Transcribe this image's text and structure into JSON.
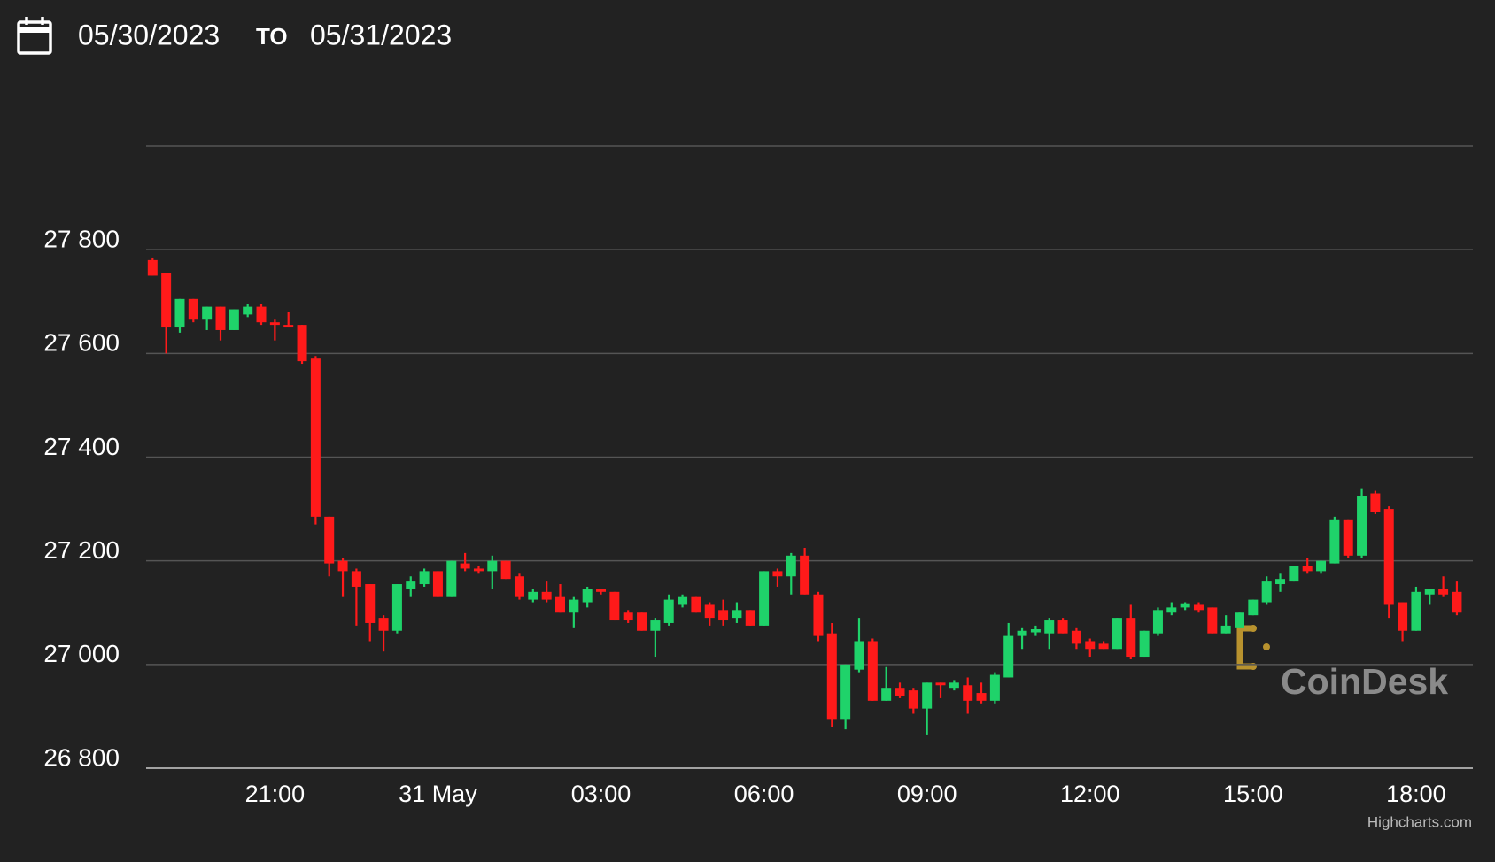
{
  "header": {
    "start_date": "05/30/2023",
    "separator": "TO",
    "end_date": "05/31/2023"
  },
  "chart_data": {
    "type": "candlestick",
    "up_color": "#1fd36a",
    "down_color": "#ff1a1a",
    "grid": true,
    "ylim": [
      26800,
      28000
    ],
    "yticks": [
      {
        "value": 26800,
        "label": "26 800"
      },
      {
        "value": 27000,
        "label": "27 000"
      },
      {
        "value": 27200,
        "label": "27 200"
      },
      {
        "value": 27400,
        "label": "27 400"
      },
      {
        "value": 27600,
        "label": "27 600"
      },
      {
        "value": 27800,
        "label": "27 800"
      }
    ],
    "categories": [
      null,
      null,
      null,
      null,
      null,
      null,
      null,
      null,
      null,
      "21:00",
      null,
      null,
      null,
      null,
      null,
      null,
      null,
      null,
      null,
      null,
      null,
      "31 May",
      null,
      null,
      null,
      null,
      null,
      null,
      null,
      null,
      null,
      null,
      null,
      "03:00",
      null,
      null,
      null,
      null,
      null,
      null,
      null,
      null,
      null,
      null,
      null,
      "06:00",
      null,
      null,
      null,
      null,
      null,
      null,
      null,
      null,
      null,
      null,
      null,
      "09:00",
      null,
      null,
      null,
      null,
      null,
      null,
      null,
      null,
      null,
      null,
      null,
      "12:00",
      null,
      null,
      null,
      null,
      null,
      null,
      null,
      null,
      null,
      null,
      null,
      "15:00",
      null,
      null,
      null,
      null,
      null,
      null,
      null,
      null,
      null,
      null,
      null,
      "18:00",
      null,
      null,
      null
    ],
    "open": [
      27780,
      27755,
      27650,
      27705,
      27665,
      27690,
      27645,
      27675,
      27690,
      27660,
      27655,
      27655,
      27590,
      27285,
      27200,
      27180,
      27155,
      27090,
      27065,
      27145,
      27155,
      27180,
      27130,
      27195,
      27185,
      27180,
      27200,
      27170,
      27125,
      27140,
      27130,
      27100,
      27120,
      27145,
      27140,
      27100,
      27100,
      27065,
      27080,
      27115,
      27130,
      27115,
      27105,
      27090,
      27105,
      27075,
      27180,
      27170,
      27210,
      27135,
      27060,
      26895,
      26990,
      27045,
      26930,
      26955,
      26950,
      26915,
      26965,
      26955,
      26960,
      26945,
      26930,
      26975,
      27055,
      27062,
      27060,
      27085,
      27065,
      27045,
      27040,
      27030,
      27090,
      27015,
      27060,
      27100,
      27110,
      27115,
      27110,
      27060,
      27070,
      27095,
      27120,
      27155,
      27160,
      27190,
      27180,
      27195,
      27280,
      27210,
      27330,
      27300,
      27120,
      27065,
      27135,
      27145,
      27140
    ],
    "high": [
      27785,
      27755,
      27705,
      27705,
      27690,
      27690,
      27685,
      27695,
      27695,
      27665,
      27680,
      27655,
      27595,
      27285,
      27205,
      27185,
      27155,
      27095,
      27155,
      27170,
      27185,
      27180,
      27200,
      27215,
      27190,
      27210,
      27200,
      27175,
      27145,
      27160,
      27155,
      27130,
      27150,
      27145,
      27140,
      27105,
      27100,
      27090,
      27135,
      27135,
      27130,
      27120,
      27125,
      27120,
      27105,
      27180,
      27185,
      27215,
      27225,
      27140,
      27080,
      27000,
      27090,
      27050,
      26995,
      26965,
      26955,
      26965,
      26965,
      26970,
      26975,
      26965,
      26985,
      27080,
      27070,
      27075,
      27090,
      27090,
      27070,
      27050,
      27045,
      27090,
      27115,
      27065,
      27110,
      27120,
      27120,
      27120,
      27110,
      27095,
      27100,
      27125,
      27170,
      27175,
      27190,
      27205,
      27200,
      27285,
      27280,
      27340,
      27335,
      27305,
      27120,
      27150,
      27145,
      27170,
      27160
    ],
    "low": [
      27750,
      27600,
      27640,
      27660,
      27645,
      27625,
      27645,
      27670,
      27655,
      27625,
      27650,
      27580,
      27270,
      27170,
      27130,
      27075,
      27045,
      27025,
      27060,
      27130,
      27150,
      27130,
      27130,
      27180,
      27175,
      27145,
      27165,
      27125,
      27120,
      27120,
      27100,
      27070,
      27110,
      27135,
      27085,
      27080,
      27065,
      27015,
      27075,
      27110,
      27100,
      27075,
      27075,
      27080,
      27075,
      27075,
      27150,
      27135,
      27135,
      27045,
      26880,
      26875,
      26985,
      26930,
      26930,
      26935,
      26905,
      26865,
      26935,
      26950,
      26905,
      26925,
      26925,
      26975,
      27030,
      27055,
      27030,
      27060,
      27030,
      27015,
      27030,
      27030,
      27010,
      27015,
      27055,
      27095,
      27105,
      27100,
      27060,
      27060,
      27070,
      27095,
      27115,
      27140,
      27160,
      27175,
      27175,
      27195,
      27205,
      27205,
      27290,
      27090,
      27045,
      27065,
      27115,
      27130,
      27095
    ],
    "close": [
      27750,
      27650,
      27705,
      27665,
      27690,
      27645,
      27685,
      27690,
      27660,
      27655,
      27650,
      27585,
      27285,
      27195,
      27180,
      27150,
      27080,
      27065,
      27155,
      27160,
      27180,
      27130,
      27200,
      27185,
      27180,
      27200,
      27165,
      27130,
      27140,
      27125,
      27100,
      27125,
      27145,
      27140,
      27085,
      27085,
      27065,
      27085,
      27125,
      27130,
      27100,
      27090,
      27085,
      27105,
      27075,
      27180,
      27170,
      27210,
      27135,
      27055,
      26895,
      27000,
      27045,
      26930,
      26955,
      26940,
      26915,
      26965,
      26960,
      26965,
      26930,
      26930,
      26980,
      27055,
      27065,
      27068,
      27085,
      27060,
      27040,
      27030,
      27030,
      27090,
      27015,
      27065,
      27105,
      27110,
      27118,
      27105,
      27060,
      27075,
      27100,
      27125,
      27160,
      27165,
      27190,
      27180,
      27200,
      27280,
      27210,
      27325,
      27295,
      27115,
      27065,
      27140,
      27145,
      27135,
      27100
    ],
    "watermark": "CoinDesk",
    "credit": "Highcharts.com"
  }
}
